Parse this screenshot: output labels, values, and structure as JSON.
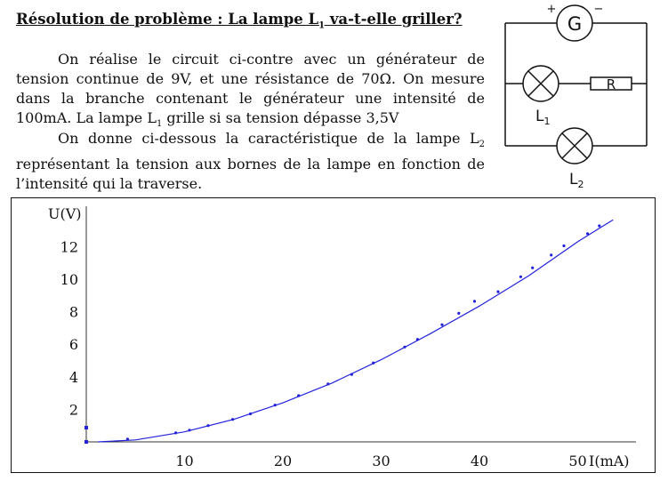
{
  "title_prefix": "Résolution de problème : La lampe L",
  "title_sub": "1",
  "title_suffix": " va-t-elle griller?",
  "paragraph1": {
    "text1": "On réalise le circuit ci-contre avec un générateur de tension continue de 9V, et une résistance de 70Ω. On mesure dans la branche contenant le générateur une intensité de 100mA. La lampe L",
    "sub": "1",
    "text2": " grille si sa tension dépasse 3,5V"
  },
  "paragraph2": {
    "text1": "On donne ci-dessous la caractéristique de la lampe L",
    "sub": "2",
    "text2": " représentant la tension aux bornes de la lampe en fonction de l’intensité qui la traverse."
  },
  "circuit": {
    "plus_sign": "+",
    "minus_sign": "−",
    "generator_label": "G",
    "resistor_label": "R",
    "lamp1_label": "L",
    "lamp1_sub": "1",
    "lamp2_label": "L",
    "lamp2_sub": "2"
  },
  "chart_data": {
    "type": "scatter",
    "title": "",
    "xlabel": "I(mA)",
    "ylabel": "U(V)",
    "xlim": [
      0,
      55
    ],
    "ylim": [
      0,
      13.6
    ],
    "x_ticks": [
      10,
      20,
      30,
      40,
      50
    ],
    "y_ticks": [
      2,
      4,
      6,
      8,
      10,
      12
    ],
    "grid": false,
    "colors": {
      "series": "#2222dd",
      "axes": "#333333"
    },
    "points": {
      "x": [
        4.2,
        9.1,
        10.5,
        12.4,
        14.9,
        16.7,
        19.2,
        21.6,
        24.6,
        27.0,
        29.2,
        32.4,
        33.7,
        36.2,
        37.9,
        39.5,
        41.9,
        44.2,
        45.4,
        47.3,
        48.6,
        51.0,
        52.2
      ],
      "y": [
        0.17,
        0.55,
        0.72,
        1.0,
        1.38,
        1.72,
        2.26,
        2.84,
        3.56,
        4.15,
        4.85,
        5.83,
        6.3,
        7.2,
        7.9,
        8.64,
        9.23,
        10.15,
        10.7,
        11.48,
        12.05,
        12.8,
        13.28
      ]
    },
    "fit_curve": {
      "x": [
        1.2,
        5,
        10,
        15,
        20,
        25,
        30,
        35,
        40,
        45,
        50,
        52.4,
        53.6
      ],
      "y": [
        0.0,
        0.12,
        0.62,
        1.38,
        2.4,
        3.62,
        5.05,
        6.65,
        8.35,
        10.2,
        12.3,
        13.2,
        13.65
      ]
    }
  }
}
